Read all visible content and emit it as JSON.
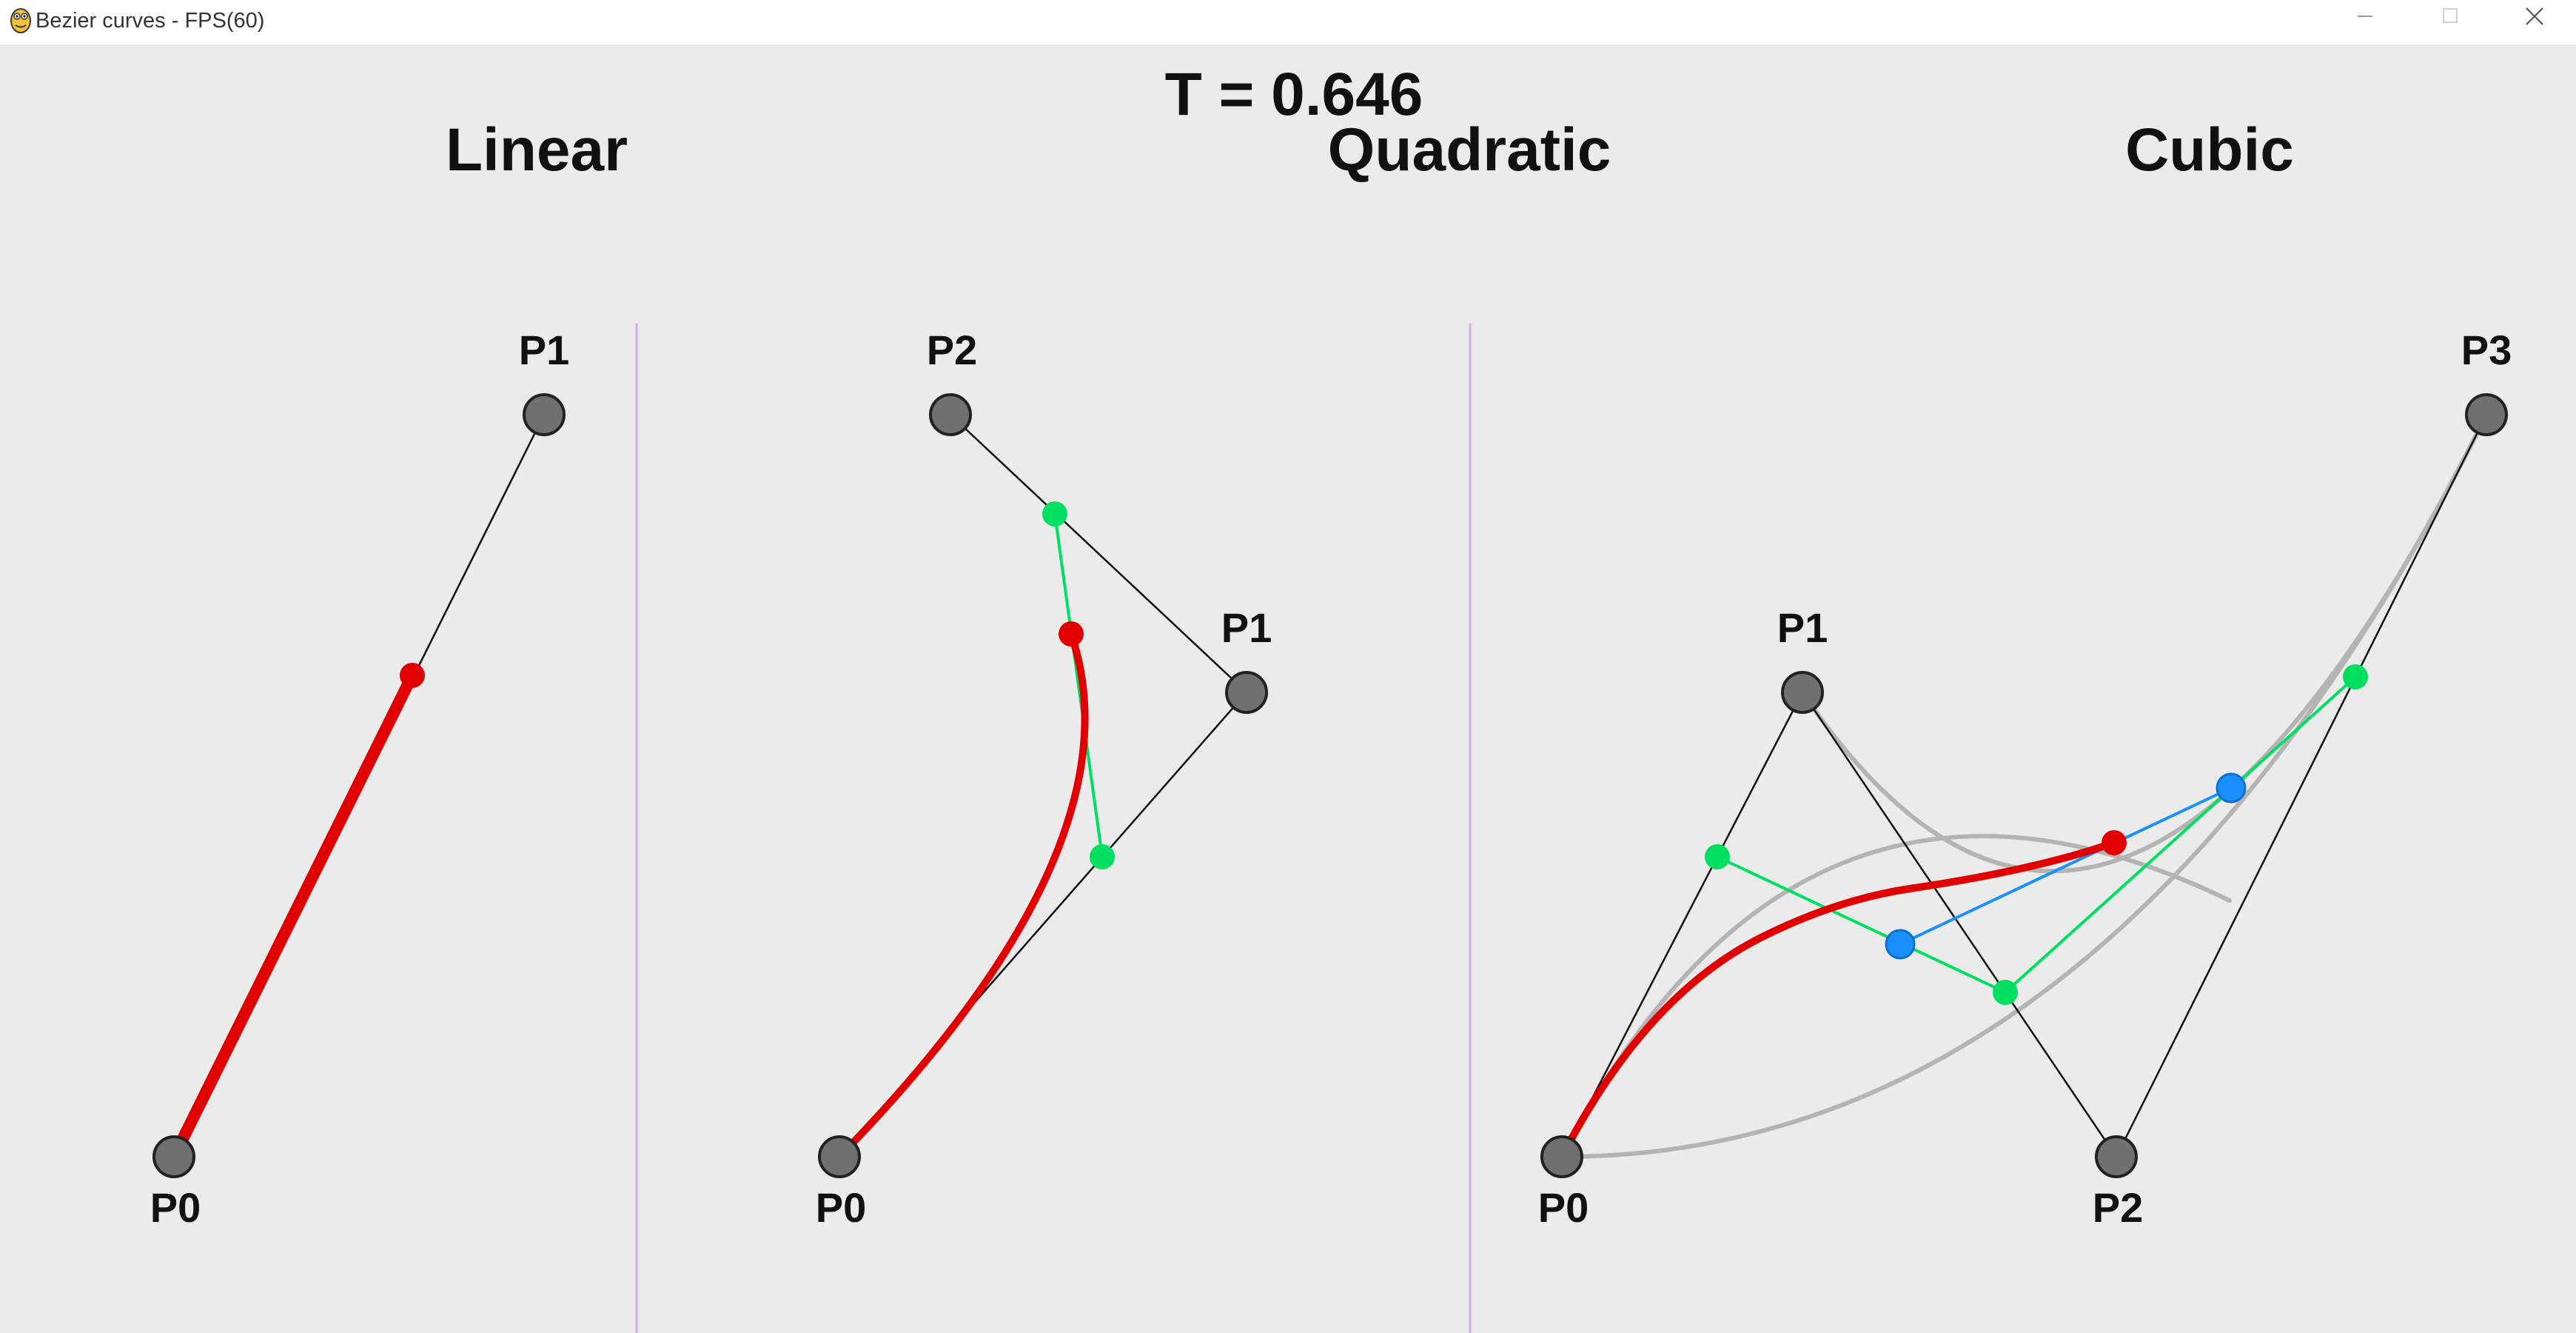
{
  "window": {
    "title": "Bezier curves - FPS(60)",
    "minimize_icon": "minimize-icon",
    "maximize_icon": "maximize-icon",
    "close_icon": "close-icon"
  },
  "canvas": {
    "t_label": "T = 0.646",
    "t_value": 0.646,
    "panels": [
      {
        "title": "Linear",
        "point_labels": [
          "P0",
          "P1"
        ]
      },
      {
        "title": "Quadratic",
        "point_labels": [
          "P0",
          "P1",
          "P2"
        ]
      },
      {
        "title": "Cubic",
        "point_labels": [
          "P0",
          "P1",
          "P2",
          "P3"
        ]
      }
    ]
  },
  "colors": {
    "background": "#ebebeb",
    "curve": "#e00000",
    "lerp_level1": "#00e060",
    "lerp_level2": "#1a8fff",
    "control_point": "#707070",
    "divider": "#c9b3e8",
    "ghost_curve": "#b4b4b4"
  }
}
